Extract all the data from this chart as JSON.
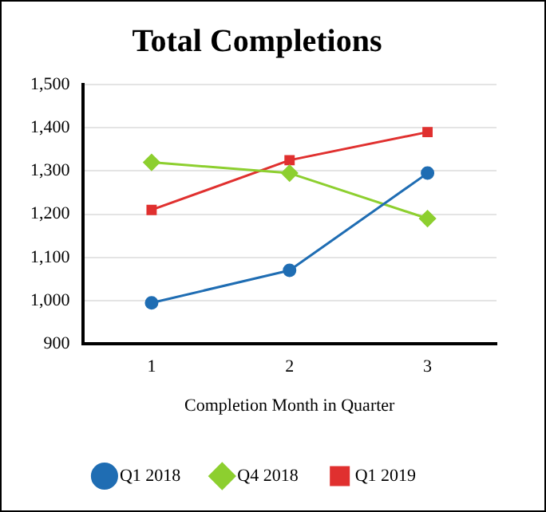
{
  "chart_data": {
    "type": "line",
    "title": "Total Completions",
    "xlabel": "Completion Month in Quarter",
    "categories": [
      "1",
      "2",
      "3"
    ],
    "series": [
      {
        "name": "Q1 2018",
        "color": "#1f6db3",
        "values": [
          995,
          1070,
          1295
        ],
        "marker": "circle"
      },
      {
        "name": "Q4 2018",
        "color": "#8dcf2f",
        "values": [
          1320,
          1295,
          1190
        ],
        "marker": "diamond"
      },
      {
        "name": "Q1 2019",
        "color": "#e0302f",
        "values": [
          1210,
          1325,
          1390
        ],
        "marker": "square"
      }
    ],
    "ylim": [
      900,
      1500
    ],
    "yticks": [
      {
        "value": 900,
        "label": "900"
      },
      {
        "value": 1000,
        "label": "1,000"
      },
      {
        "value": 1100,
        "label": "1,100"
      },
      {
        "value": 1200,
        "label": "1,200"
      },
      {
        "value": 1300,
        "label": "1,300"
      },
      {
        "value": 1400,
        "label": "1,400"
      },
      {
        "value": 1500,
        "label": "1,500"
      }
    ],
    "grid": "y",
    "legend": "bottom",
    "line_style": "solid"
  }
}
